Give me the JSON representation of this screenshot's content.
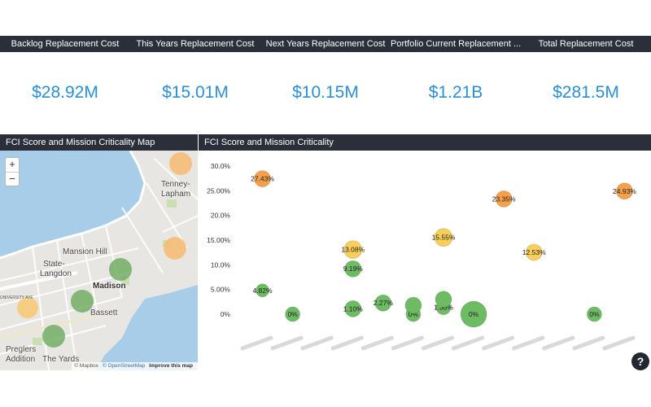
{
  "kpis": [
    {
      "label": "Backlog Replacement Cost",
      "value": "$28.92M"
    },
    {
      "label": "This Years Replacement Cost",
      "value": "$15.01M"
    },
    {
      "label": "Next Years Replacement Cost",
      "value": "$10.15M"
    },
    {
      "label": "Portfolio Current Replacement ...",
      "value": "$1.21B"
    },
    {
      "label": "Total Replacement Cost",
      "value": "$281.5M"
    }
  ],
  "map": {
    "title": "FCI Score and Mission Criticality Map",
    "zoom_in": "+",
    "zoom_out": "−",
    "attribution": {
      "logo": "© Mapbox",
      "osm": "© OpenStreetMap",
      "improve": "Improve this map"
    },
    "places": {
      "tenney": "Tenney-",
      "lapham": "Lapham",
      "mansion_hill": "Mansion Hill",
      "state": "State-",
      "langdon": "Langdon",
      "madison": "Madison",
      "bassett": "Bassett",
      "preglers": "Preglers",
      "addition": "Addition",
      "the_yards": "The Yards",
      "university": "UNIVERSITY AVE"
    }
  },
  "chart_panel": {
    "title": "FCI Score and Mission Criticality"
  },
  "chart_data": {
    "type": "scatter",
    "title": "FCI Score and Mission Criticality",
    "ylim": [
      0,
      30
    ],
    "yticks": [
      "0%",
      "5.00%",
      "10.0%",
      "15.00%",
      "20.0%",
      "25.00%",
      "30.0%"
    ],
    "x_categories": 13,
    "points": [
      {
        "x": 1,
        "y": 27.43,
        "label": "27.43%",
        "color": "#f5a04a",
        "size": 10
      },
      {
        "x": 1,
        "y": 4.82,
        "label": "4.82%",
        "color": "#6dbb63",
        "size": 8
      },
      {
        "x": 2,
        "y": 0,
        "label": "0%",
        "color": "#6dbb63",
        "size": 9
      },
      {
        "x": 4,
        "y": 13.08,
        "label": "13.08%",
        "color": "#f7cf5a",
        "size": 11
      },
      {
        "x": 4,
        "y": 9.19,
        "label": "9.19%",
        "color": "#6dbb63",
        "size": 10
      },
      {
        "x": 4,
        "y": 1.1,
        "label": "1.10%",
        "color": "#6dbb63",
        "size": 10
      },
      {
        "x": 5,
        "y": 2.27,
        "label": "2.27%",
        "color": "#6dbb63",
        "size": 10
      },
      {
        "x": 6,
        "y": 0,
        "label": "0%",
        "color": "#6dbb63",
        "size": 9
      },
      {
        "x": 6,
        "y": 1.8,
        "label": "",
        "color": "#6dbb63",
        "size": 10
      },
      {
        "x": 7,
        "y": 15.55,
        "label": "15.55%",
        "color": "#f7cf5a",
        "size": 11
      },
      {
        "x": 7,
        "y": 1.38,
        "label": "1.38%",
        "color": "#6dbb63",
        "size": 9
      },
      {
        "x": 7,
        "y": 3.0,
        "label": "",
        "color": "#6dbb63",
        "size": 10
      },
      {
        "x": 8,
        "y": 0,
        "label": "0%",
        "color": "#6dbb63",
        "size": 16
      },
      {
        "x": 9,
        "y": 23.35,
        "label": "23.35%",
        "color": "#f5a04a",
        "size": 10
      },
      {
        "x": 10,
        "y": 12.53,
        "label": "12.53%",
        "color": "#f7cf5a",
        "size": 10
      },
      {
        "x": 12,
        "y": 0,
        "label": "0%",
        "color": "#6dbb63",
        "size": 9
      },
      {
        "x": 13,
        "y": 24.93,
        "label": "24.93%",
        "color": "#f5a04a",
        "size": 10
      }
    ]
  },
  "help": {
    "label": "?"
  }
}
